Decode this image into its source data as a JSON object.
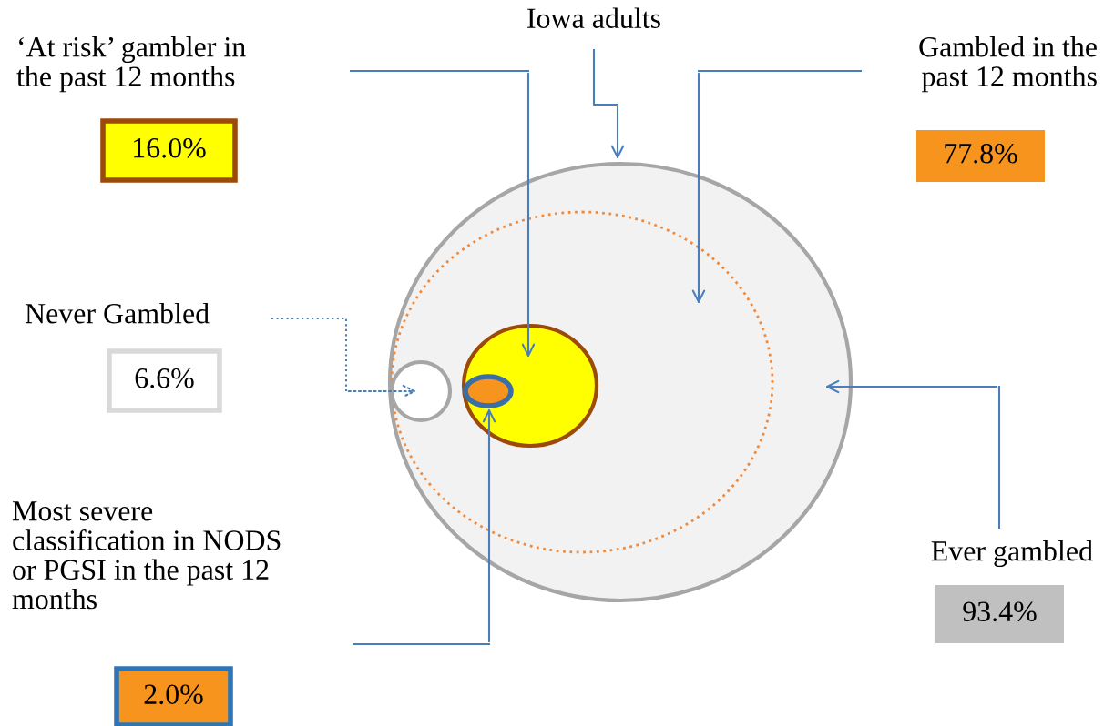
{
  "chart_data": {
    "type": "other",
    "categories": [
      "‘At risk’ gambler in\nthe past 12 months",
      "Gambled in the\npast 12 months",
      "Never Gambled",
      "Most severe\nclassification in NODS\nor PGSI in the past 12\nmonths",
      "Ever gambled"
    ],
    "values": [
      16.0,
      77.8,
      6.6,
      2.0,
      93.4
    ],
    "value_labels": [
      "16.0%",
      "77.8%",
      "6.6%",
      "2.0%",
      "93.4%"
    ],
    "colors": [
      "#ffff00",
      "#f7941d",
      "#ffffff",
      "#f7941d",
      "#c0c0c0"
    ],
    "annotations": [
      "Iowa adults"
    ]
  }
}
